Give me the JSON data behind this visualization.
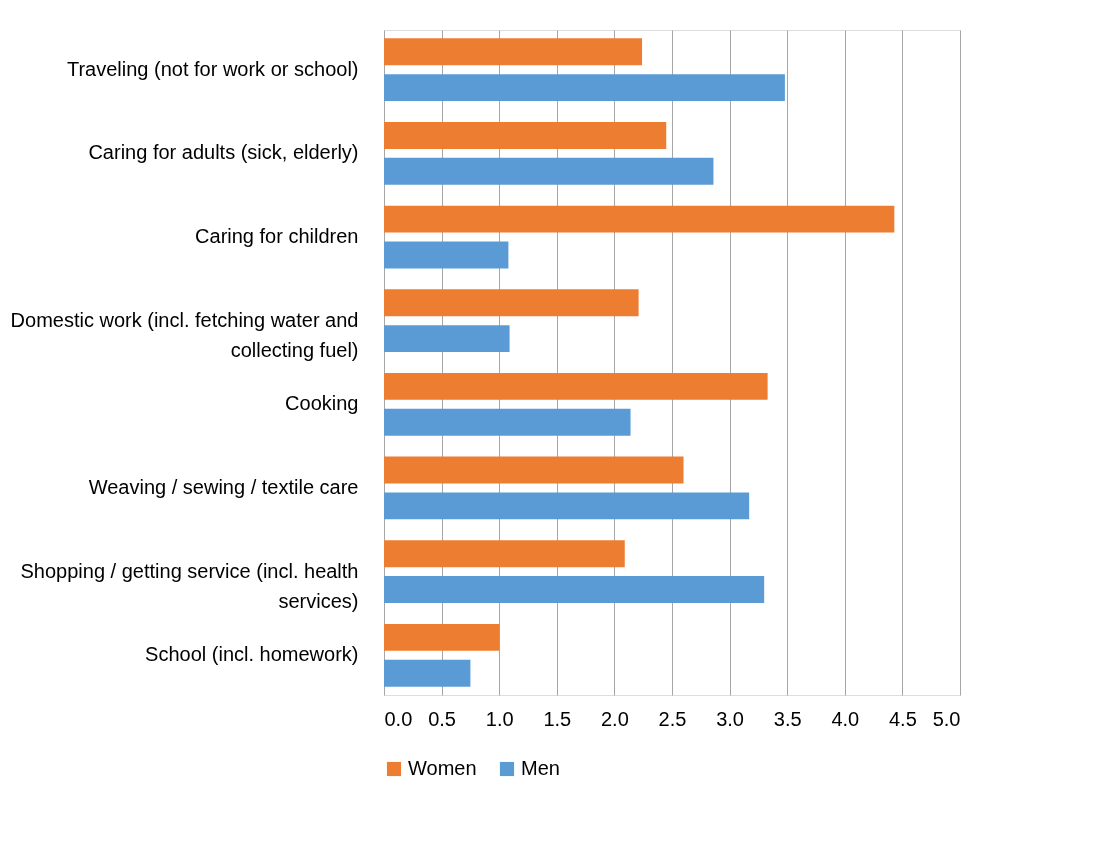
{
  "chart_data": {
    "type": "bar",
    "orientation": "horizontal",
    "categories": [
      "Traveling (not for work or school)",
      "Caring for adults (sick, elderly)",
      "Caring for children",
      "Domestic work (incl. fetching water and collecting fuel)",
      "Cooking",
      "Weaving / sewing / textile care",
      "Shopping / getting service (incl. health services)",
      "School (incl. homework)"
    ],
    "series": [
      {
        "name": "Women",
        "color": "#ed7d31",
        "values": [
          2.24,
          2.45,
          4.43,
          2.21,
          3.33,
          2.6,
          2.09,
          1.0
        ]
      },
      {
        "name": "Men",
        "color": "#5b9bd5",
        "values": [
          3.48,
          2.86,
          1.08,
          1.09,
          2.14,
          3.17,
          3.3,
          0.75
        ]
      }
    ],
    "xlim": [
      0,
      5
    ],
    "xticks": [
      {
        "value": 0,
        "label": "0.0"
      },
      {
        "value": 0.5,
        "label": "0.5"
      },
      {
        "value": 1,
        "label": "1.0"
      },
      {
        "value": 1.5,
        "label": "1.5"
      },
      {
        "value": 2,
        "label": "2.0"
      },
      {
        "value": 2.5,
        "label": "2.5"
      },
      {
        "value": 3,
        "label": "3.0"
      },
      {
        "value": 3.5,
        "label": "3.5"
      },
      {
        "value": 4,
        "label": "4.0"
      },
      {
        "value": 4.5,
        "label": "4.5"
      },
      {
        "value": 5,
        "label": "5.0"
      }
    ],
    "grid": "x",
    "legend": "bottom"
  }
}
